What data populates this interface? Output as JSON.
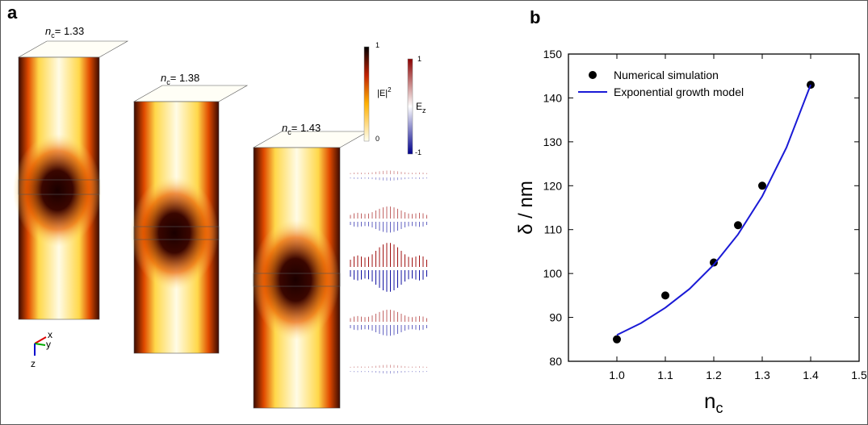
{
  "panel_a": {
    "label": "a",
    "crystals": [
      {
        "symbol": "n",
        "subscript": "c",
        "value": "= 1.33"
      },
      {
        "symbol": "n",
        "subscript": "c",
        "value": "= 1.38"
      },
      {
        "symbol": "n",
        "subscript": "c",
        "value": "= 1.43"
      }
    ],
    "colorbar_intensity": {
      "max": "1",
      "label": "|E|",
      "exponent": "2",
      "min": "0"
    },
    "colorbar_ez": {
      "max": "1",
      "label": "E",
      "subscript": "z",
      "min": "-1"
    },
    "axes_triad": {
      "x": "x",
      "y": "y",
      "z": "z"
    }
  },
  "chart_data": {
    "type": "scatter",
    "panel_label": "b",
    "x_label": {
      "text": "n",
      "subscript": "c"
    },
    "y_label": "δ / nm",
    "xlim": [
      0.9,
      1.5
    ],
    "xticks": [
      {
        "value": 1,
        "label": "1.0"
      },
      1.1,
      1.2,
      1.3,
      1.4,
      1.5
    ],
    "ylim": [
      80,
      150
    ],
    "yticks": [
      80,
      90,
      100,
      110,
      120,
      130,
      140,
      150
    ],
    "legend": "upper-left",
    "series": [
      {
        "name": "Numerical simulation",
        "mode": "markers",
        "color": "#000000",
        "x": [
          1.0,
          1.1,
          1.2,
          1.25,
          1.3,
          1.4
        ],
        "values": [
          85,
          95,
          102.5,
          111,
          120,
          143
        ]
      },
      {
        "name": "Exponential growth model",
        "mode": "line",
        "color": "#1a1ad6",
        "x": [
          1.0,
          1.05,
          1.1,
          1.15,
          1.2,
          1.25,
          1.3,
          1.35,
          1.4
        ],
        "values": [
          86,
          88.7,
          92.2,
          96.5,
          102,
          108.9,
          117.6,
          128.7,
          143
        ]
      }
    ]
  }
}
